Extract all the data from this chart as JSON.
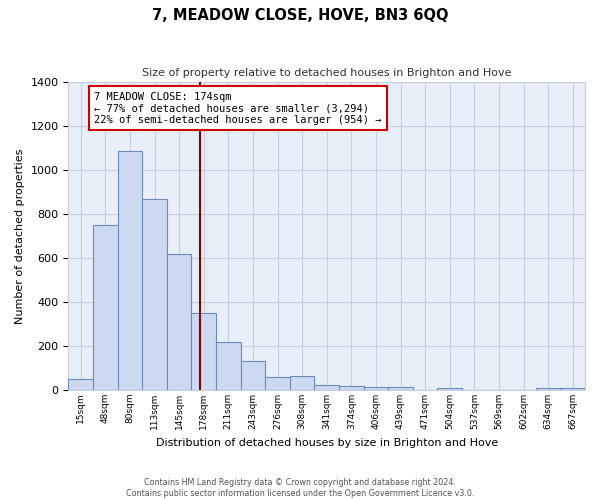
{
  "title": "7, MEADOW CLOSE, HOVE, BN3 6QQ",
  "subtitle": "Size of property relative to detached houses in Brighton and Hove",
  "xlabel": "Distribution of detached houses by size in Brighton and Hove",
  "ylabel": "Number of detached properties",
  "bar_labels": [
    "15sqm",
    "48sqm",
    "80sqm",
    "113sqm",
    "145sqm",
    "178sqm",
    "211sqm",
    "243sqm",
    "276sqm",
    "308sqm",
    "341sqm",
    "374sqm",
    "406sqm",
    "439sqm",
    "471sqm",
    "504sqm",
    "537sqm",
    "569sqm",
    "602sqm",
    "634sqm",
    "667sqm"
  ],
  "bar_values": [
    50,
    750,
    1090,
    870,
    620,
    350,
    220,
    133,
    60,
    65,
    25,
    20,
    15,
    15,
    0,
    10,
    0,
    0,
    0,
    10,
    10
  ],
  "bar_color": "#ccd9f0",
  "bar_edge_color": "#6b8cba",
  "vline_x": 4.85,
  "vline_color": "#8b0000",
  "annotation_title": "7 MEADOW CLOSE: 174sqm",
  "annotation_line1": "← 77% of detached houses are smaller (3,294)",
  "annotation_line2": "22% of semi-detached houses are larger (954) →",
  "annotation_box_color": "#ffffff",
  "annotation_box_edge": "#cc0000",
  "ylim": [
    0,
    1400
  ],
  "yticks": [
    0,
    200,
    400,
    600,
    800,
    1000,
    1200,
    1400
  ],
  "footnote1": "Contains HM Land Registry data © Crown copyright and database right 2024.",
  "footnote2": "Contains public sector information licensed under the Open Government Licence v3.0.",
  "bg_color": "#ffffff",
  "plot_bg_color": "#e8eef8",
  "grid_color": "#c5cfe0"
}
